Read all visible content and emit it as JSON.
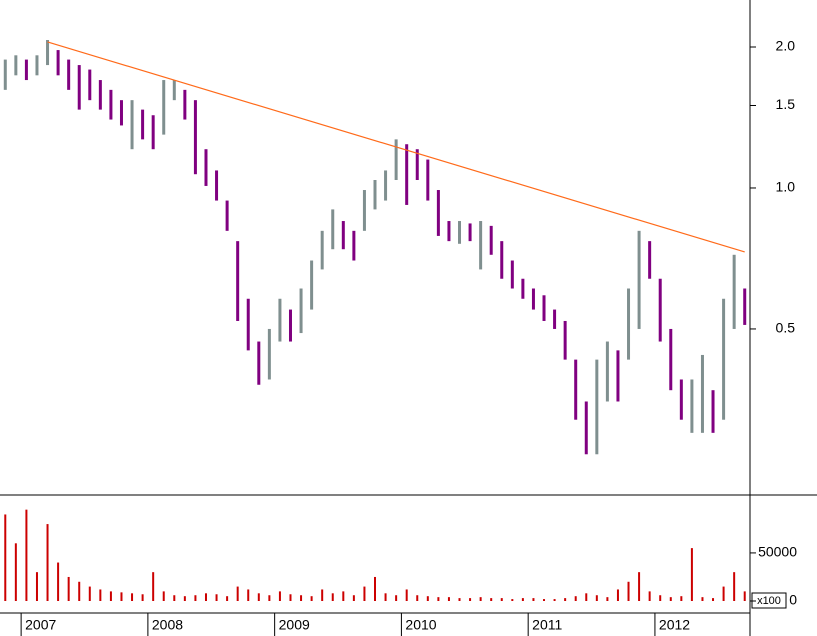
{
  "chart_data": {
    "type": "hilo",
    "categories": [
      null,
      null,
      "2007",
      null,
      null,
      null,
      null,
      null,
      null,
      null,
      null,
      null,
      null,
      null,
      "2008",
      null,
      null,
      null,
      null,
      null,
      null,
      null,
      null,
      null,
      null,
      null,
      "2009",
      null,
      null,
      null,
      null,
      null,
      null,
      null,
      null,
      null,
      null,
      null,
      "2010",
      null,
      null,
      null,
      null,
      null,
      null,
      null,
      null,
      null,
      null,
      null,
      "2011",
      null,
      null,
      null,
      null,
      null,
      null,
      null,
      null,
      null,
      null,
      null,
      "2012",
      null,
      null,
      null,
      null,
      null,
      null,
      null,
      null
    ],
    "high": [
      1.88,
      1.92,
      1.88,
      1.92,
      2.07,
      1.97,
      1.88,
      1.83,
      1.79,
      1.7,
      1.62,
      1.54,
      1.54,
      1.47,
      1.43,
      1.7,
      1.7,
      1.62,
      1.54,
      1.21,
      1.09,
      0.94,
      0.77,
      0.58,
      0.47,
      0.5,
      0.58,
      0.55,
      0.61,
      0.7,
      0.81,
      0.9,
      0.85,
      0.81,
      0.99,
      1.04,
      1.09,
      1.27,
      1.24,
      1.21,
      1.15,
      0.99,
      0.85,
      0.85,
      0.84,
      0.85,
      0.83,
      0.77,
      0.7,
      0.64,
      0.61,
      0.59,
      0.55,
      0.52,
      0.43,
      0.35,
      0.43,
      0.47,
      0.45,
      0.61,
      0.81,
      0.77,
      0.64,
      0.5,
      0.39,
      0.39,
      0.44,
      0.37,
      0.58,
      0.72,
      0.61
    ],
    "low": [
      1.62,
      1.74,
      1.7,
      1.74,
      1.83,
      1.74,
      1.62,
      1.47,
      1.54,
      1.47,
      1.4,
      1.36,
      1.21,
      1.27,
      1.21,
      1.3,
      1.54,
      1.4,
      1.07,
      1.01,
      0.94,
      0.81,
      0.52,
      0.45,
      0.38,
      0.39,
      0.47,
      0.47,
      0.49,
      0.55,
      0.67,
      0.74,
      0.74,
      0.7,
      0.81,
      0.9,
      0.94,
      1.04,
      0.92,
      1.04,
      0.94,
      0.79,
      0.77,
      0.76,
      0.77,
      0.67,
      0.72,
      0.64,
      0.61,
      0.58,
      0.55,
      0.52,
      0.5,
      0.43,
      0.32,
      0.27,
      0.27,
      0.35,
      0.35,
      0.43,
      0.5,
      0.64,
      0.47,
      0.37,
      0.32,
      0.3,
      0.3,
      0.3,
      0.32,
      0.5,
      0.51
    ],
    "up_color": "#7f8f8f",
    "down_color": "#800080",
    "y_log": true,
    "ylim": [
      0.221,
      2.52
    ],
    "yticks": [
      {
        "value": 0.5,
        "label": "0.5"
      },
      {
        "value": 1,
        "label": "1.0"
      },
      1.5,
      {
        "value": 2,
        "label": "2.0"
      }
    ],
    "trendline": {
      "start_index": 4,
      "start_value": 2.05,
      "end_index": 70,
      "end_value": 0.73,
      "color": "#ff6a1a"
    },
    "volume": {
      "values": [
        90000,
        60000,
        95000,
        30000,
        80000,
        40000,
        25000,
        20000,
        15000,
        12000,
        10000,
        9000,
        8000,
        7000,
        30000,
        10000,
        6000,
        5000,
        6000,
        8000,
        7000,
        5000,
        15000,
        12000,
        8000,
        6000,
        10000,
        7000,
        6000,
        5000,
        12000,
        8000,
        10000,
        6000,
        15000,
        25000,
        8000,
        6000,
        12000,
        6000,
        5000,
        4000,
        4000,
        3000,
        3000,
        4000,
        3000,
        3000,
        2000,
        3000,
        3000,
        2000,
        2000,
        3000,
        5000,
        8000,
        6000,
        4000,
        12000,
        20000,
        30000,
        10000,
        6000,
        4000,
        5000,
        55000,
        4000,
        3000,
        15000,
        30000,
        10000
      ],
      "color": "#cc0000",
      "ylim": [
        0,
        104000
      ],
      "yticks": [
        0,
        50000
      ],
      "unit_label": "x100"
    }
  }
}
